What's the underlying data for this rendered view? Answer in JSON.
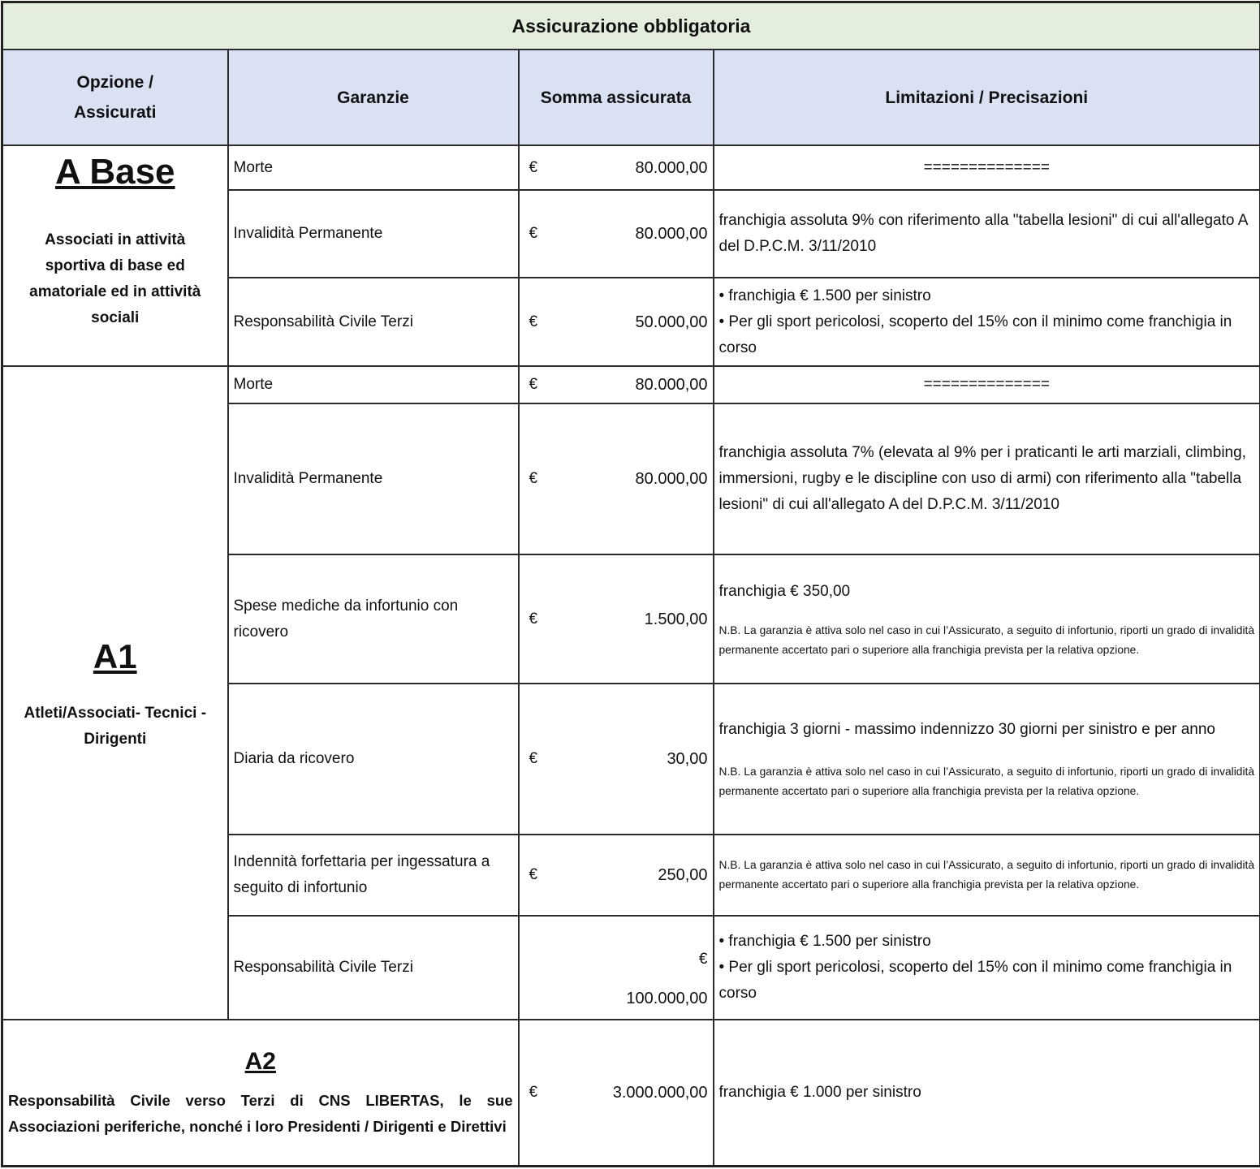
{
  "title": "Assicurazione obbligatoria",
  "headers": [
    "Opzione / Assicurati",
    "Garanzie",
    "Somma assicurata",
    "Limitazioni / Precisazioni"
  ],
  "currency": "€",
  "nb_note": "N.B. La garanzia è attiva solo nel caso in cui l’Assicurato, a seguito di infortunio, riporti un grado di invalidità permanente accertato pari o superiore alla franchigia prevista per  la relativa opzione.",
  "a_base": {
    "name": "A Base",
    "description": "Associati in attività sportiva di base ed amatoriale ed in attività sociali",
    "rows": [
      {
        "garanzia": "Morte",
        "somma": "80.000,00",
        "limitazioni": "=============="
      },
      {
        "garanzia": "Invalidità Permanente",
        "somma": "80.000,00",
        "limitazioni": "franchigia assoluta 9% con riferimento alla \"tabella lesioni\" di cui all'allegato A  del D.P.C.M. 3/11/2010"
      },
      {
        "garanzia": "Responsabilità Civile Terzi",
        "somma": "50.000,00",
        "limitazioni": [
          "• franchigia € 1.500 per sinistro",
          "• Per gli sport pericolosi, scoperto del 15% con il minimo come franchigia in corso"
        ]
      }
    ]
  },
  "a1": {
    "name": "A1",
    "description": "Atleti/Associati- Tecnici - Dirigenti",
    "rows": [
      {
        "garanzia": "Morte",
        "somma": "80.000,00",
        "limitazioni": "=============="
      },
      {
        "garanzia": "Invalidità Permanente",
        "somma": "80.000,00",
        "limitazioni": "franchigia assoluta 7% (elevata al 9% per i praticanti le arti marziali, climbing, immersioni, rugby e le discipline con uso di armi) con riferimento alla \"tabella lesioni\" di cui all'allegato A  del D.P.C.M. 3/11/2010"
      },
      {
        "garanzia": "Spese mediche da infortunio con ricovero",
        "somma": "1.500,00",
        "limitazioni": "franchigia € 350,00"
      },
      {
        "garanzia": "Diaria da ricovero",
        "somma": "30,00",
        "limitazioni": "franchigia 3 giorni - massimo indennizzo 30 giorni per sinistro e per anno"
      },
      {
        "garanzia": "Indennità forfettaria per ingessatura a seguito di infortunio",
        "somma": "250,00",
        "limitazioni": ""
      },
      {
        "garanzia": "Responsabilità Civile Terzi",
        "somma": "100.000,00",
        "limitazioni": [
          "• franchigia € 1.500 per sinistro",
          "• Per gli sport pericolosi, scoperto del 15% con il minimo come franchigia in corso"
        ]
      }
    ]
  },
  "a2": {
    "name": "A2",
    "description": "Responsabilità Civile verso Terzi di CNS LIBERTAS, le sue Associazioni periferiche, nonché i loro Presidenti / Dirigenti e Direttivi",
    "somma": "3.000.000,00",
    "limitazioni": "franchigia € 1.000 per sinistro"
  }
}
